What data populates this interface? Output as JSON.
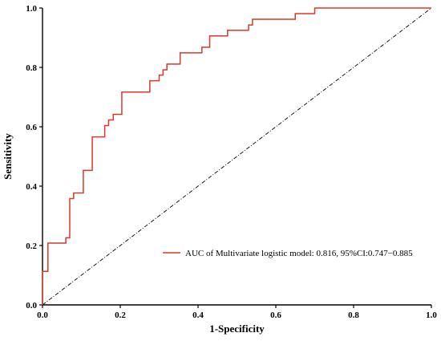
{
  "chart_data": {
    "type": "line",
    "xlabel": "1-Specificity",
    "ylabel": "Sensitivity",
    "xlim": [
      0,
      1
    ],
    "ylim": [
      0,
      1
    ],
    "x_ticks": [
      "0.0",
      "0.2",
      "0.4",
      "0.6",
      "0.8",
      "1.0"
    ],
    "y_ticks": [
      "0.0",
      "0.2",
      "0.4",
      "0.6",
      "0.8",
      "1.0"
    ],
    "grid": false,
    "legend_position": "bottom-right",
    "series": [
      {
        "name": "AUC of Multivariate logistic model: 0.816, 95%CI:0.747−0.885",
        "color": "#d63a2a",
        "step": true,
        "points": [
          [
            0.0,
            0.0
          ],
          [
            0.0,
            0.113
          ],
          [
            0.014,
            0.113
          ],
          [
            0.014,
            0.208
          ],
          [
            0.06,
            0.208
          ],
          [
            0.06,
            0.226
          ],
          [
            0.07,
            0.226
          ],
          [
            0.07,
            0.358
          ],
          [
            0.08,
            0.358
          ],
          [
            0.08,
            0.377
          ],
          [
            0.105,
            0.377
          ],
          [
            0.105,
            0.453
          ],
          [
            0.128,
            0.453
          ],
          [
            0.128,
            0.566
          ],
          [
            0.16,
            0.566
          ],
          [
            0.16,
            0.604
          ],
          [
            0.17,
            0.604
          ],
          [
            0.17,
            0.623
          ],
          [
            0.182,
            0.623
          ],
          [
            0.182,
            0.642
          ],
          [
            0.204,
            0.642
          ],
          [
            0.204,
            0.717
          ],
          [
            0.276,
            0.717
          ],
          [
            0.276,
            0.755
          ],
          [
            0.3,
            0.755
          ],
          [
            0.3,
            0.774
          ],
          [
            0.31,
            0.774
          ],
          [
            0.31,
            0.792
          ],
          [
            0.32,
            0.792
          ],
          [
            0.32,
            0.811
          ],
          [
            0.354,
            0.811
          ],
          [
            0.354,
            0.849
          ],
          [
            0.41,
            0.849
          ],
          [
            0.41,
            0.868
          ],
          [
            0.43,
            0.868
          ],
          [
            0.43,
            0.906
          ],
          [
            0.476,
            0.906
          ],
          [
            0.476,
            0.925
          ],
          [
            0.53,
            0.925
          ],
          [
            0.53,
            0.943
          ],
          [
            0.54,
            0.943
          ],
          [
            0.54,
            0.962
          ],
          [
            0.65,
            0.962
          ],
          [
            0.65,
            0.981
          ],
          [
            0.7,
            0.981
          ],
          [
            0.7,
            1.0
          ],
          [
            1.0,
            1.0
          ]
        ]
      },
      {
        "name": "",
        "color": "#000000",
        "dash": "dash-dot",
        "points": [
          [
            0,
            0
          ],
          [
            1,
            1
          ]
        ]
      }
    ]
  }
}
